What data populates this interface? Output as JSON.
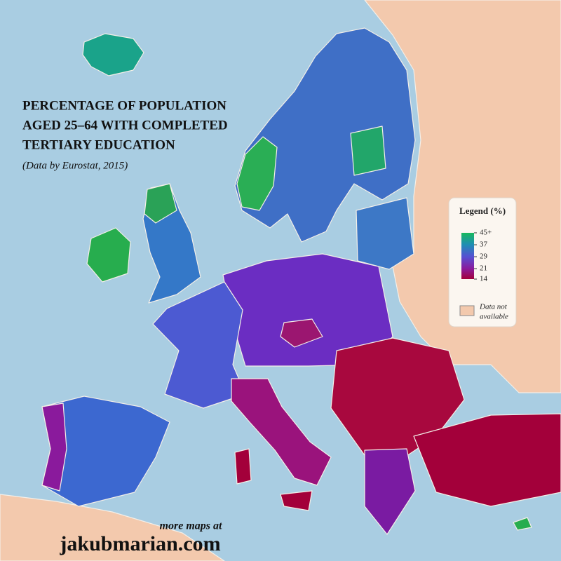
{
  "title": [
    "PERCENTAGE OF POPULATION",
    "AGED 25–64 WITH COMPLETED",
    "TERTIARY EDUCATION"
  ],
  "subtitle": "(Data by Eurostat, 2015)",
  "legend": {
    "title": "Legend (%)",
    "ticks": [
      {
        "value": 45,
        "label": "45+"
      },
      37,
      29,
      21,
      14
    ],
    "colors": [
      "#17b85c",
      "#1f8db4",
      "#5650d2",
      "#8a1b9c",
      "#a3003a"
    ],
    "na_label": [
      "Data not",
      "available"
    ],
    "na_color": "#f3c9ad"
  },
  "footer": {
    "line1": "more maps at",
    "site": "jakubmarian.com"
  }
}
